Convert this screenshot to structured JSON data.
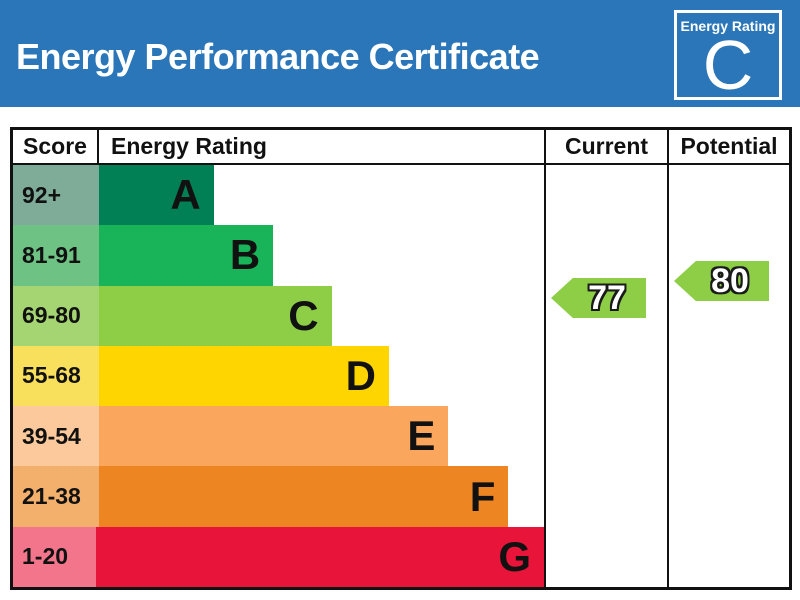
{
  "header": {
    "title": "Energy Performance Certificate",
    "background_color": "#2B76B9",
    "badge": {
      "label": "Energy Rating",
      "grade": "C"
    }
  },
  "table": {
    "columns": {
      "score": "Score",
      "rating": "Energy Rating",
      "current": "Current",
      "potential": "Potential"
    }
  },
  "bands": [
    {
      "grade": "A",
      "score": "92+",
      "bar_color": "#008054",
      "tint_color": "#7FAC99",
      "bar_pct": 21.6
    },
    {
      "grade": "B",
      "score": "81-91",
      "bar_color": "#19B459",
      "tint_color": "#6EC284",
      "bar_pct": 32.8
    },
    {
      "grade": "C",
      "score": "69-80",
      "bar_color": "#8DCE46",
      "tint_color": "#A5D572",
      "bar_pct": 43.8
    },
    {
      "grade": "D",
      "score": "55-68",
      "bar_color": "#FFD500",
      "tint_color": "#F8E05C",
      "bar_pct": 54.6
    },
    {
      "grade": "E",
      "score": "39-54",
      "bar_color": "#FAA65D",
      "tint_color": "#FBC99C",
      "bar_pct": 65.8
    },
    {
      "grade": "F",
      "score": "21-38",
      "bar_color": "#EE8523",
      "tint_color": "#F3B06C",
      "bar_pct": 77.1
    },
    {
      "grade": "G",
      "score": "1-20",
      "bar_color": "#E8143A",
      "tint_color": "#F2758C",
      "bar_pct": 88.1
    }
  ],
  "arrows": {
    "color": "#8DCE46",
    "current": {
      "value": "77"
    },
    "potential": {
      "value": "80"
    }
  },
  "chart_data": {
    "type": "bar",
    "title": "Energy Performance Certificate",
    "categories": [
      "A",
      "B",
      "C",
      "D",
      "E",
      "F",
      "G"
    ],
    "score_ranges": [
      "92+",
      "81-91",
      "69-80",
      "55-68",
      "39-54",
      "21-38",
      "1-20"
    ],
    "band_colors": [
      "#008054",
      "#19B459",
      "#8DCE46",
      "#FFD500",
      "#FAA65D",
      "#EE8523",
      "#E8143A"
    ],
    "bar_relative_lengths_pct": [
      21.6,
      32.8,
      43.8,
      54.6,
      65.8,
      77.1,
      88.1
    ],
    "current_rating": 77,
    "current_band": "C",
    "potential_rating": 80,
    "potential_band": "C",
    "xlabel": "Energy Rating",
    "ylabel": "Score"
  }
}
